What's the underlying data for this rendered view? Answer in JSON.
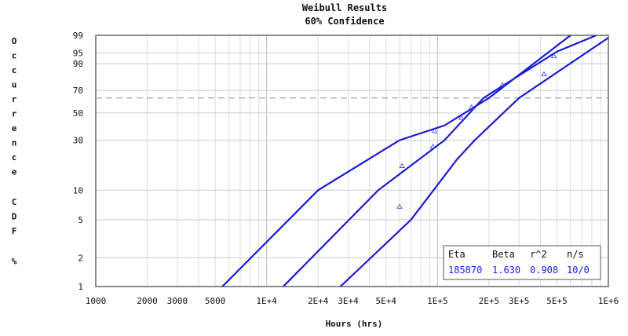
{
  "chart_data": {
    "type": "line",
    "title": "Weibull Results",
    "subtitle": "60% Confidence",
    "xlabel": "Hours (hrs)",
    "ylabel": "Occurrence CDF %",
    "x_scale": "log",
    "y_scale": "weibull",
    "xlim": [
      1000,
      1000000
    ],
    "ylim": [
      1,
      99
    ],
    "grid": true,
    "x_ticks": [
      {
        "value": 1000,
        "label": "1000"
      },
      {
        "value": 2000,
        "label": "2000"
      },
      {
        "value": 3000,
        "label": "3000"
      },
      {
        "value": 5000,
        "label": "5000"
      },
      {
        "value": 10000,
        "label": "1E+4"
      },
      {
        "value": 20000,
        "label": "2E+4"
      },
      {
        "value": 30000,
        "label": "3E+4"
      },
      {
        "value": 50000,
        "label": "5E+4"
      },
      {
        "value": 100000,
        "label": "1E+5"
      },
      {
        "value": 200000,
        "label": "2E+5"
      },
      {
        "value": 300000,
        "label": "3E+5"
      },
      {
        "value": 500000,
        "label": "5E+5"
      },
      {
        "value": 1000000,
        "label": "1E+6"
      }
    ],
    "y_ticks": [
      1,
      2,
      5,
      10,
      30,
      50,
      70,
      90,
      95,
      99
    ],
    "reference_line_y": 63.2,
    "series": [
      {
        "color": "#1a1ad6",
        "points": [
          [
            5500,
            1
          ],
          [
            20000,
            10
          ],
          [
            60000,
            30
          ],
          [
            110000,
            40
          ],
          [
            200000,
            63.2
          ],
          [
            600000,
            99
          ]
        ]
      },
      {
        "color": "#1a1ad6",
        "points": [
          [
            12500,
            1
          ],
          [
            45000,
            10
          ],
          [
            110000,
            30
          ],
          [
            185870,
            63.2
          ],
          [
            500000,
            95.5
          ],
          [
            850000,
            99
          ]
        ]
      },
      {
        "color": "#1a1ad6",
        "points": [
          [
            27000,
            1
          ],
          [
            70000,
            5
          ],
          [
            130000,
            20
          ],
          [
            165000,
            30
          ],
          [
            300000,
            63.2
          ],
          [
            1050000,
            99
          ]
        ]
      }
    ],
    "data_points": [
      [
        60000,
        6.8
      ],
      [
        62000,
        17.3
      ],
      [
        94000,
        26.3
      ],
      [
        96000,
        35.9
      ],
      [
        138000,
        45.9
      ],
      [
        158000,
        54.8
      ],
      [
        240000,
        74.6
      ],
      [
        420000,
        83.1
      ],
      [
        480000,
        93.7
      ]
    ],
    "legend": {
      "headers": [
        "Eta",
        "Beta",
        "r^2",
        "n/s"
      ],
      "values": [
        "185870",
        "1.630",
        "0.908",
        "10/0"
      ],
      "placement": "bottom-right"
    }
  }
}
